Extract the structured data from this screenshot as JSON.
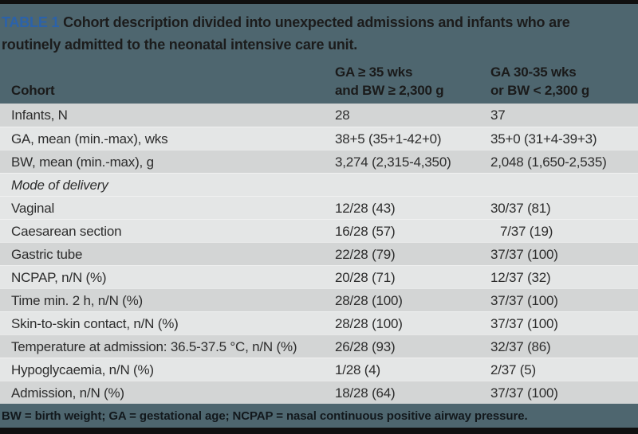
{
  "title": {
    "label": "TABLE 1",
    "line1": "Cohort description divided into unexpected admissions and infants who are",
    "line2": "routinely admitted to the neonatal intensive care unit."
  },
  "table": {
    "header": {
      "col1": "Cohort",
      "col2_line1": "GA ≥ 35 wks",
      "col2_line2": "and BW ≥ 2,300 g",
      "col3_line1": "GA 30-35 wks",
      "col3_line2": "or BW < 2,300 g"
    },
    "rows": [
      {
        "label": "Infants, N",
        "col2": "28",
        "col3": "37",
        "shade": "dark",
        "italic": false
      },
      {
        "label": "GA, mean (min.-max), wks",
        "col2": "38+5 (35+1-42+0)",
        "col3": "35+0 (31+4-39+3)",
        "shade": "light",
        "italic": false
      },
      {
        "label": "BW, mean (min.-max), g",
        "col2": "3,274 (2,315-4,350)",
        "col3": "2,048 (1,650-2,535)",
        "shade": "dark",
        "italic": false
      },
      {
        "label": "Mode of delivery",
        "col2": "",
        "col3": "",
        "shade": "light",
        "italic": true
      },
      {
        "label": "Vaginal",
        "col2": "12/28 (43)",
        "col3": "30/37 (81)",
        "shade": "light",
        "italic": false
      },
      {
        "label": "Caesarean section",
        "col2": "16/28 (57)",
        "col3": "7/37 (19)",
        "shade": "light",
        "italic": false,
        "col3_indent": true
      },
      {
        "label": "Gastric tube",
        "col2": "22/28 (79)",
        "col3": "37/37 (100)",
        "shade": "dark",
        "italic": false
      },
      {
        "label": "NCPAP, n/N (%)",
        "col2": "20/28 (71)",
        "col3": "12/37 (32)",
        "shade": "light",
        "italic": false
      },
      {
        "label": "Time min. 2 h, n/N (%)",
        "col2": "28/28 (100)",
        "col3": "37/37 (100)",
        "shade": "dark",
        "italic": false
      },
      {
        "label": "Skin-to-skin contact, n/N (%)",
        "col2": "28/28 (100)",
        "col3": "37/37 (100)",
        "shade": "light",
        "italic": false
      },
      {
        "label": "Temperature at admission: 36.5-37.5 °C, n/N (%)",
        "col2": "26/28 (93)",
        "col3": "32/37 (86)",
        "shade": "dark",
        "italic": false
      },
      {
        "label": "Hypoglycaemia, n/N (%)",
        "col2": "1/28 (4)",
        "col3": "2/37 (5)",
        "shade": "light",
        "italic": false
      },
      {
        "label": "Admission, n/N (%)",
        "col2": "18/28 (64)",
        "col3": "37/37 (100)",
        "shade": "dark",
        "italic": false
      }
    ]
  },
  "footnote": "BW = birth weight; GA = gestational age; NCPAP = nasal continuous positive airway pressure.",
  "colors": {
    "slate_band": "#4e666f",
    "accent_blue": "#2b62aa",
    "row_dark": "#d3d5d5",
    "row_light": "#e4e6e6",
    "rule_black": "#101010",
    "body_text": "#2d2d2d",
    "header_text": "#1a1a1a"
  }
}
